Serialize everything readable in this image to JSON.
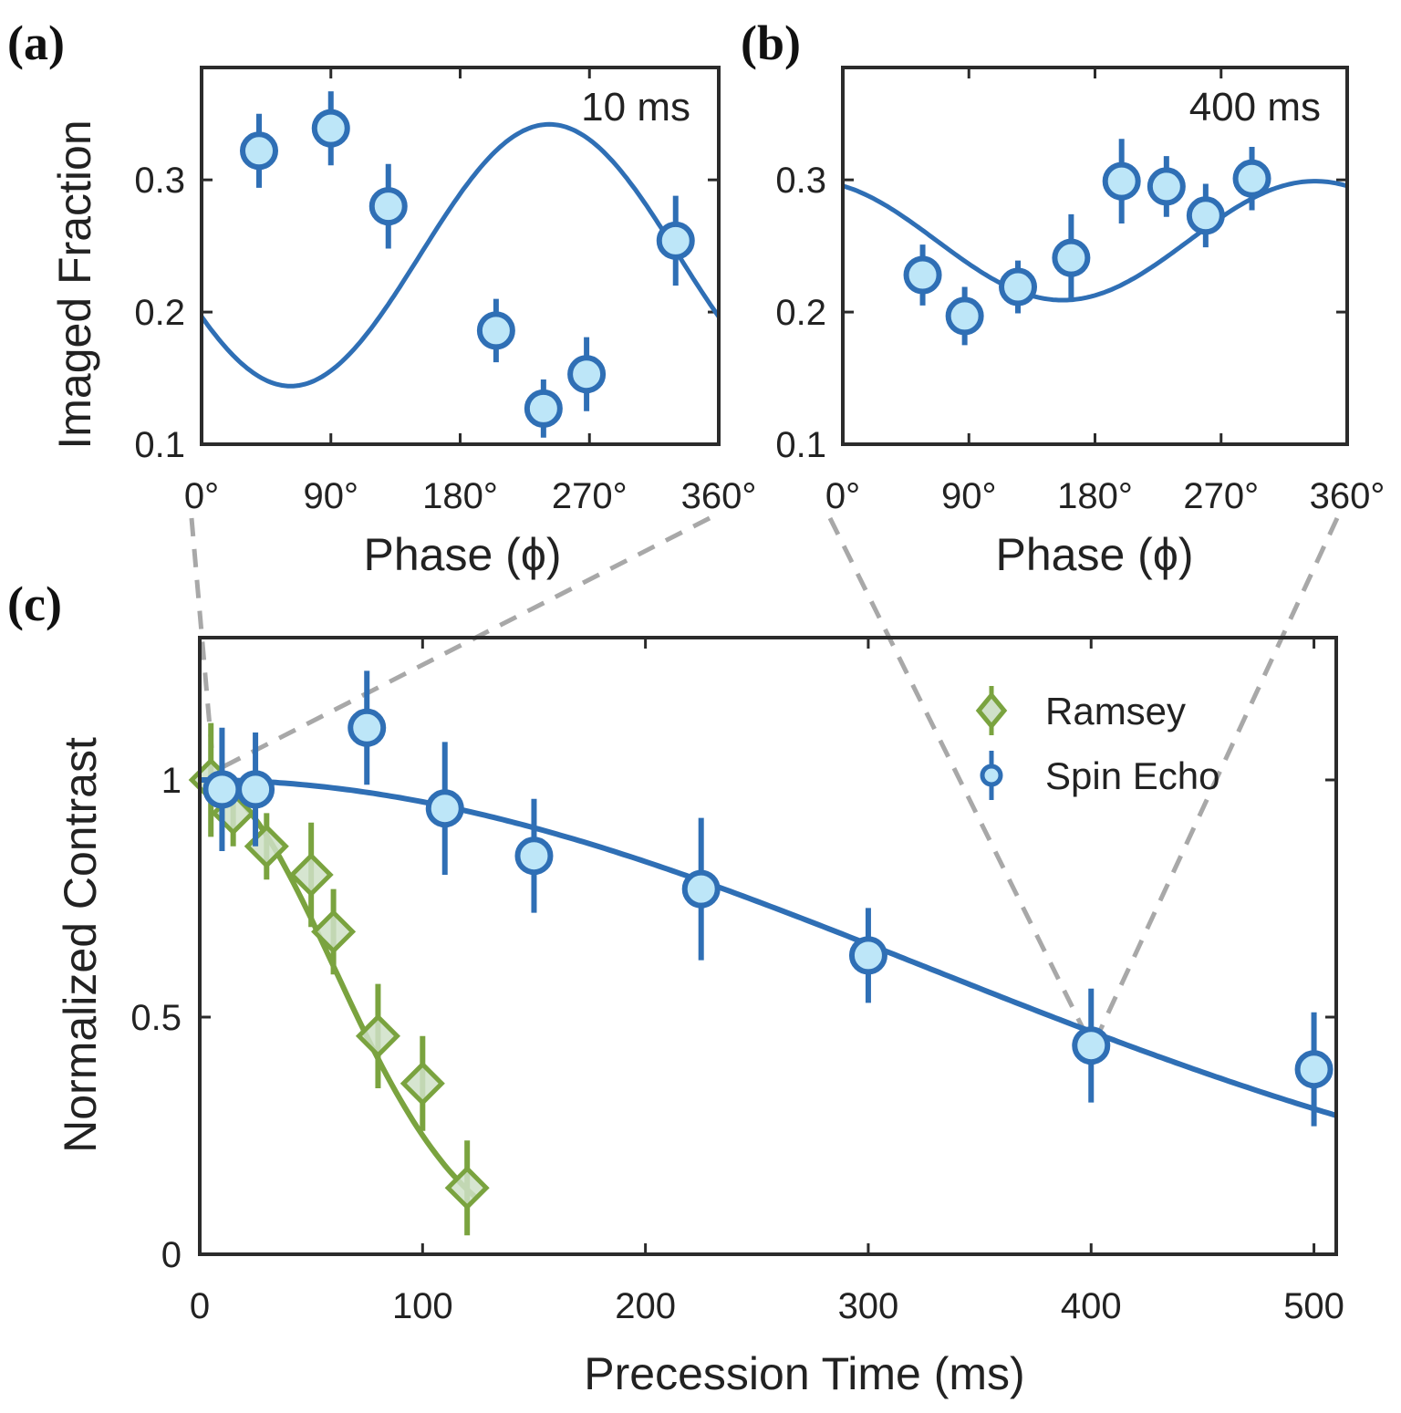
{
  "figure": {
    "panels": [
      "(a)",
      "(b)",
      "(c)"
    ]
  },
  "chart_data": [
    {
      "id": "a",
      "panel_label": "(a)",
      "type": "scatter",
      "annotation": "10 ms",
      "xlabel": "Phase (ϕ)",
      "ylabel": "Imaged Fraction",
      "xlim": [
        0,
        360
      ],
      "ylim": [
        0.1,
        0.385
      ],
      "xticks": [
        0,
        90,
        180,
        270,
        360
      ],
      "xtick_labels": [
        "0°",
        "90°",
        "180°",
        "270°",
        "360°"
      ],
      "yticks": [
        0.1,
        0.2,
        0.3
      ],
      "ytick_labels": [
        "0.1",
        "0.2",
        "0.3"
      ],
      "colors": {
        "line": "#2f6fb5",
        "marker_fill": "#bde6f8",
        "marker_edge": "#2f6fb5"
      },
      "points": [
        {
          "x": 40,
          "y": 0.322,
          "err": 0.028
        },
        {
          "x": 90,
          "y": 0.339,
          "err": 0.028
        },
        {
          "x": 130,
          "y": 0.28,
          "err": 0.032
        },
        {
          "x": 205,
          "y": 0.186,
          "err": 0.024
        },
        {
          "x": 238,
          "y": 0.127,
          "err": 0.022
        },
        {
          "x": 268,
          "y": 0.153,
          "err": 0.028
        },
        {
          "x": 330,
          "y": 0.254,
          "err": 0.034
        }
      ],
      "fit": {
        "offset": 0.243,
        "amplitude": 0.099,
        "phase_shift_deg": 152
      }
    },
    {
      "id": "b",
      "panel_label": "(b)",
      "type": "scatter",
      "annotation": "400 ms",
      "xlabel": "Phase (ϕ)",
      "ylabel": "",
      "xlim": [
        0,
        360
      ],
      "ylim": [
        0.1,
        0.385
      ],
      "xticks": [
        0,
        90,
        180,
        270,
        360
      ],
      "xtick_labels": [
        "0°",
        "90°",
        "180°",
        "270°",
        "360°"
      ],
      "yticks": [
        0.1,
        0.2,
        0.3
      ],
      "ytick_labels": [
        "0.1",
        "0.2",
        "0.3"
      ],
      "colors": {
        "line": "#2f6fb5",
        "marker_fill": "#bde6f8",
        "marker_edge": "#2f6fb5"
      },
      "points": [
        {
          "x": 57,
          "y": 0.228,
          "err": 0.023
        },
        {
          "x": 87,
          "y": 0.197,
          "err": 0.022
        },
        {
          "x": 125,
          "y": 0.219,
          "err": 0.02
        },
        {
          "x": 163,
          "y": 0.241,
          "err": 0.033
        },
        {
          "x": 199,
          "y": 0.299,
          "err": 0.032
        },
        {
          "x": 231,
          "y": 0.295,
          "err": 0.023
        },
        {
          "x": 259,
          "y": 0.273,
          "err": 0.024
        },
        {
          "x": 292,
          "y": 0.301,
          "err": 0.024
        }
      ],
      "fit": {
        "offset": 0.254,
        "amplitude": 0.045,
        "phase_shift_deg": -113
      }
    },
    {
      "id": "c",
      "panel_label": "(c)",
      "type": "scatter",
      "xlabel": "Precession Time (ms)",
      "ylabel": "Normalized Contrast",
      "xlim": [
        0,
        510
      ],
      "ylim": [
        0,
        1.3
      ],
      "xticks": [
        0,
        100,
        200,
        300,
        400,
        500
      ],
      "xtick_labels": [
        "0",
        "100",
        "200",
        "300",
        "400",
        "500"
      ],
      "yticks": [
        0,
        0.5,
        1
      ],
      "ytick_labels": [
        "0",
        "0.5",
        "1"
      ],
      "legend": {
        "position": "top-right",
        "entries": [
          "Ramsey",
          "Spin Echo"
        ]
      },
      "series": [
        {
          "name": "Ramsey",
          "marker": "diamond",
          "colors": {
            "line": "#7aa33f",
            "marker_fill": "#cfe0c8",
            "marker_edge": "#7aa33f"
          },
          "points": [
            {
              "x": 5,
              "y": 1.0,
              "err": 0.12
            },
            {
              "x": 15,
              "y": 0.93,
              "err": 0.07
            },
            {
              "x": 30,
              "y": 0.86,
              "err": 0.07
            },
            {
              "x": 50,
              "y": 0.8,
              "err": 0.11
            },
            {
              "x": 60,
              "y": 0.68,
              "err": 0.09
            },
            {
              "x": 80,
              "y": 0.46,
              "err": 0.11
            },
            {
              "x": 100,
              "y": 0.36,
              "err": 0.1
            },
            {
              "x": 120,
              "y": 0.14,
              "err": 0.1
            }
          ],
          "fit": {
            "model": "exp(-(t/T)^2)",
            "T_ms": 85,
            "t_max": 125
          }
        },
        {
          "name": "Spin Echo",
          "marker": "circle",
          "colors": {
            "line": "#2f6fb5",
            "marker_fill": "#bde6f8",
            "marker_edge": "#2f6fb5"
          },
          "points": [
            {
              "x": 10,
              "y": 0.98,
              "err": 0.13
            },
            {
              "x": 25,
              "y": 0.98,
              "err": 0.12
            },
            {
              "x": 75,
              "y": 1.11,
              "err": 0.12
            },
            {
              "x": 110,
              "y": 0.94,
              "err": 0.14
            },
            {
              "x": 150,
              "y": 0.84,
              "err": 0.12
            },
            {
              "x": 225,
              "y": 0.77,
              "err": 0.15
            },
            {
              "x": 300,
              "y": 0.63,
              "err": 0.1
            },
            {
              "x": 400,
              "y": 0.44,
              "err": 0.12
            },
            {
              "x": 500,
              "y": 0.39,
              "err": 0.12
            }
          ],
          "fit": {
            "model": "exp(-(t/T)^2)",
            "T_ms": 460,
            "t_max": 510
          }
        }
      ]
    }
  ]
}
